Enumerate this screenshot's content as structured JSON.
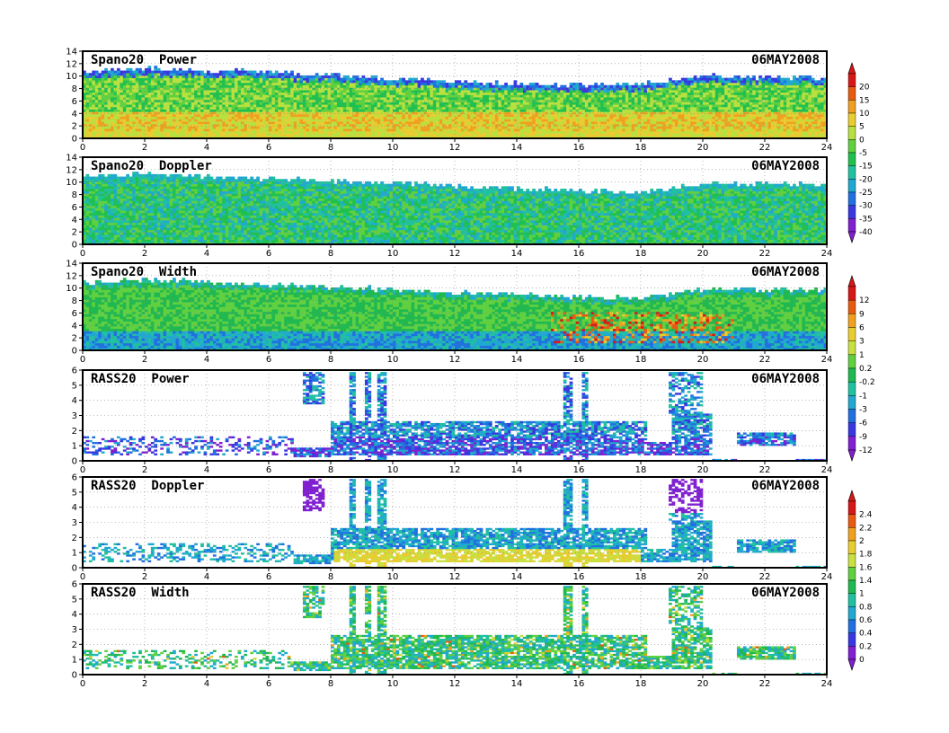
{
  "date": "06MAY2008",
  "chart_data": [
    {
      "type": "heatmap",
      "title": "Spano20  Power",
      "ylim": [
        0,
        14
      ],
      "yticks": [
        "0",
        "2",
        "4",
        "6",
        "8",
        "10",
        "12",
        "14"
      ],
      "kind": "spano",
      "top_km": [
        10.8,
        11.2,
        11.0,
        10.6,
        10.2,
        9.6,
        9.2,
        8.8,
        8.6,
        8.8,
        10.2,
        9.8
      ],
      "palette": "p1",
      "colorbar_labels": [
        "20",
        "15",
        "10",
        "5",
        "0",
        "-5",
        "-15",
        "-20",
        "-25",
        "-30",
        "-35",
        "-40"
      ]
    },
    {
      "type": "heatmap",
      "title": "Spano20  Doppler",
      "ylim": [
        0,
        14
      ],
      "yticks": [
        "0",
        "2",
        "4",
        "6",
        "8",
        "10",
        "12",
        "14"
      ],
      "kind": "spano",
      "top_km": [
        10.8,
        11.4,
        11.0,
        10.6,
        10.2,
        9.8,
        9.4,
        9.0,
        8.6,
        8.4,
        9.8,
        9.8
      ],
      "palette": "p1"
    },
    {
      "type": "heatmap",
      "title": "Spano20  Width",
      "ylim": [
        0,
        14
      ],
      "yticks": [
        "0",
        "2",
        "4",
        "6",
        "8",
        "10",
        "12",
        "14"
      ],
      "kind": "spano",
      "top_km": [
        10.8,
        11.4,
        11.0,
        10.6,
        10.2,
        9.8,
        9.4,
        9.0,
        8.6,
        8.4,
        9.8,
        9.8
      ],
      "palette": "p2",
      "colorbar_labels": [
        "12",
        "9",
        "6",
        "3",
        "1",
        "0.2",
        "-0.2",
        "-1",
        "-3",
        "-6",
        "-9",
        "-12"
      ]
    },
    {
      "type": "heatmap",
      "title": "RASS20  Power",
      "ylim": [
        0,
        6
      ],
      "yticks": [
        "0",
        "1",
        "2",
        "3",
        "4",
        "5",
        "6"
      ],
      "kind": "rass",
      "palette": "p2"
    },
    {
      "type": "heatmap",
      "title": "RASS20  Doppler",
      "ylim": [
        0,
        6
      ],
      "yticks": [
        "0",
        "1",
        "2",
        "3",
        "4",
        "5",
        "6"
      ],
      "kind": "rass",
      "palette": "p3",
      "colorbar_labels": [
        "2.4",
        "2.2",
        "2",
        "1.8",
        "1.6",
        "1.4",
        "1",
        "0.8",
        "0.6",
        "0.4",
        "0.2",
        "0"
      ]
    },
    {
      "type": "heatmap",
      "title": "RASS20  Width",
      "ylim": [
        0,
        6
      ],
      "yticks": [
        "0",
        "1",
        "2",
        "3",
        "4",
        "5",
        "6"
      ],
      "kind": "rass",
      "palette": "p3"
    }
  ],
  "xaxis": {
    "xlim": [
      0,
      24
    ],
    "ticks": [
      "0",
      "2",
      "4",
      "6",
      "8",
      "10",
      "12",
      "14",
      "16",
      "18",
      "20",
      "22",
      "24"
    ]
  },
  "colors": {
    "p1": [
      "#d81818",
      "#e85a10",
      "#f0a020",
      "#e8cc30",
      "#b8e040",
      "#60d040",
      "#20c050",
      "#20c0a0",
      "#20a8d0",
      "#2070e0",
      "#3838e0",
      "#8020d0"
    ],
    "p2": [
      "#d81818",
      "#e85a10",
      "#f0a020",
      "#e8cc30",
      "#c8e040",
      "#60d040",
      "#20b850",
      "#20c0a0",
      "#20a8d0",
      "#2070e0",
      "#3838e0",
      "#8020d0"
    ],
    "p3": [
      "#d81818",
      "#e85a10",
      "#f0a020",
      "#e8cc30",
      "#c8e040",
      "#60d040",
      "#20b850",
      "#20c0a0",
      "#20a8d0",
      "#2070e0",
      "#3838e0",
      "#8020d0"
    ]
  }
}
